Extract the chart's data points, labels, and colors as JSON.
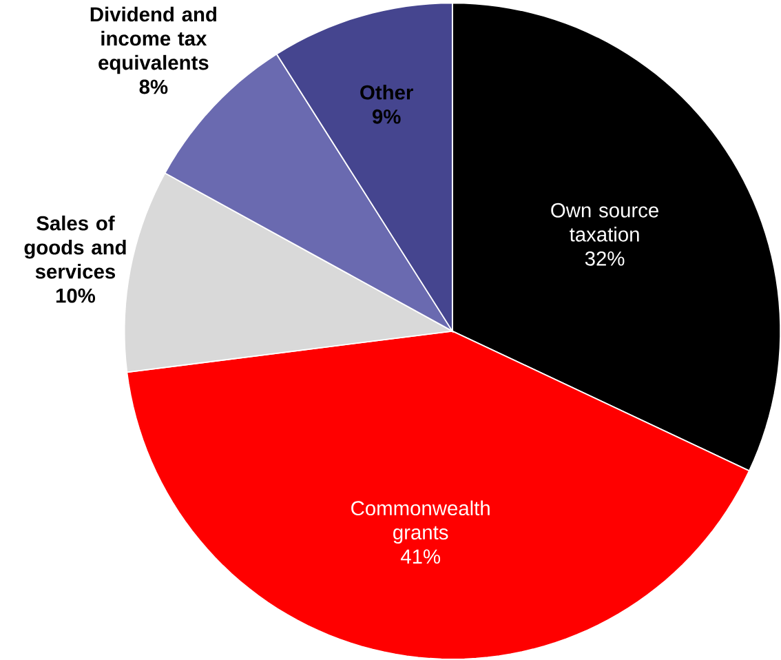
{
  "chart_data": {
    "type": "pie",
    "categories": [
      "Own source taxation",
      "Commonwealth grants",
      "Sales of goods and services",
      "Dividend and income tax equivalents",
      "Other"
    ],
    "values": [
      32,
      41,
      10,
      8,
      9
    ],
    "value_labels": [
      "32%",
      "41%",
      "10%",
      "8%",
      "9%"
    ],
    "colors": [
      "#000000",
      "#ff0000",
      "#d9d9d9",
      "#6a6ab0",
      "#45458f"
    ]
  }
}
